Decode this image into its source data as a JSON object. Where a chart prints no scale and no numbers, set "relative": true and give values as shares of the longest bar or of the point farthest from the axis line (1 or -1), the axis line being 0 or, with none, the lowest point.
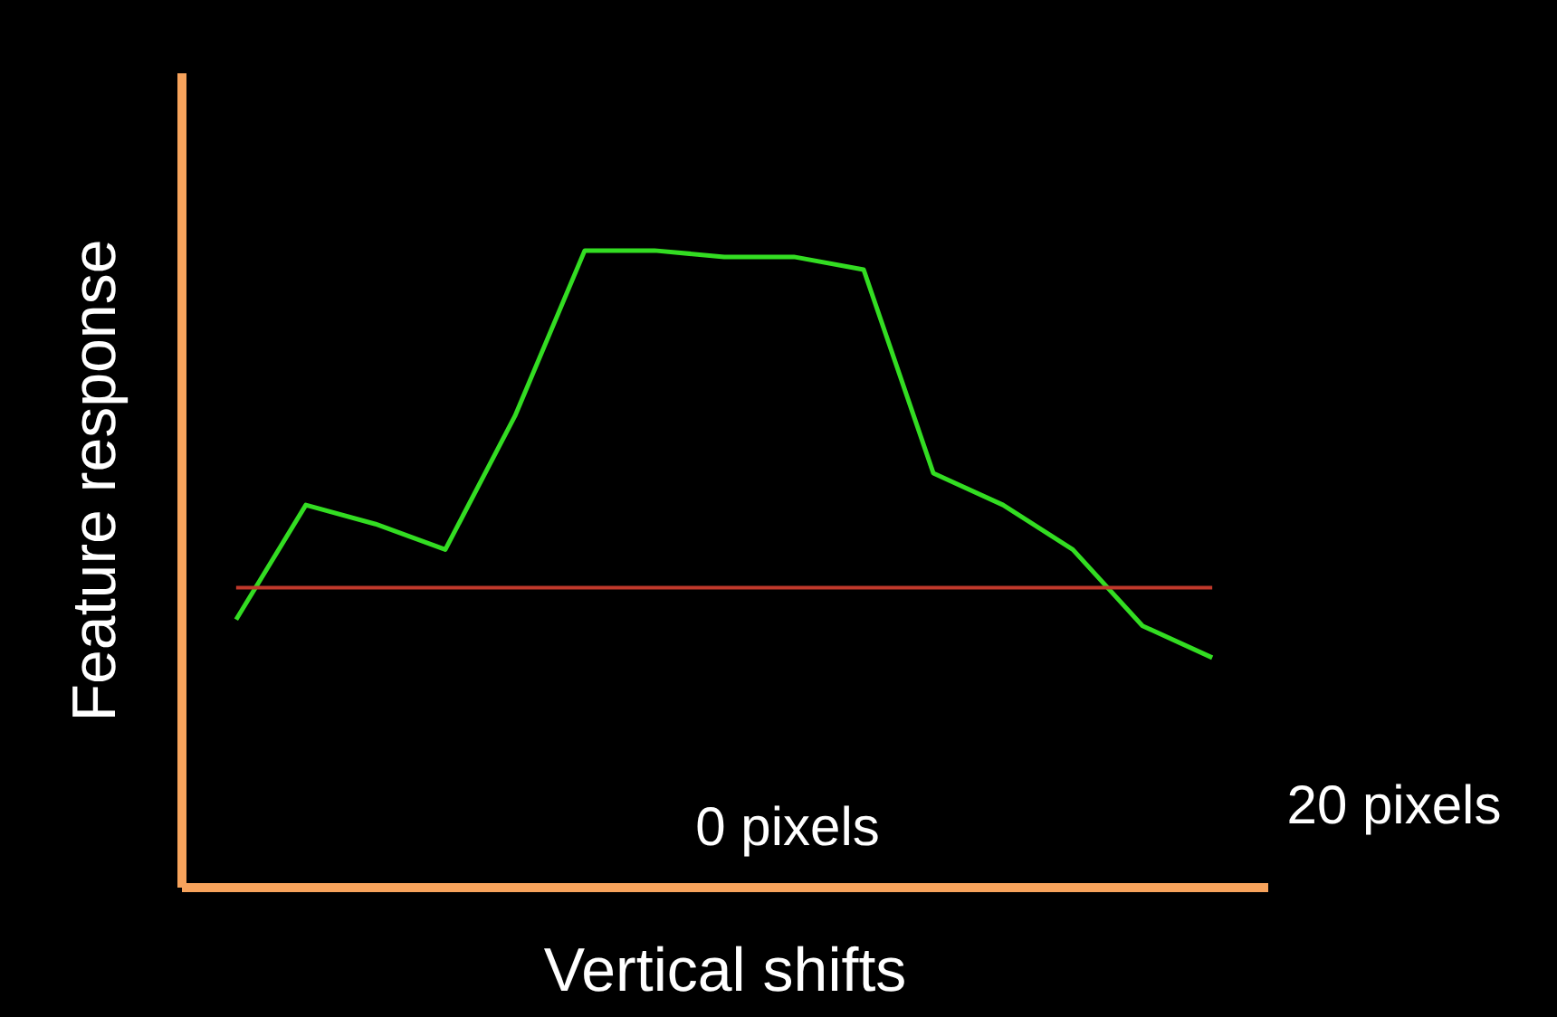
{
  "chart_data": {
    "type": "line",
    "xlabel": "Vertical shifts",
    "ylabel": "Feature response",
    "relative": true,
    "line_style": "solid",
    "categories": [
      null,
      null,
      null,
      null,
      null,
      null,
      null,
      null,
      null,
      null,
      null,
      null,
      null,
      null,
      null
    ],
    "series": [
      {
        "color": "#33dd22",
        "values": [
          0.42,
          0.6,
          0.57,
          0.53,
          0.74,
          1.0,
          1.0,
          0.99,
          0.99,
          0.97,
          0.65,
          0.6,
          0.53,
          0.41,
          0.36
        ]
      }
    ],
    "ref_lines": [
      {
        "axis": "y",
        "value": 0.47,
        "color": "#c0392b"
      }
    ],
    "annotations": [
      "0 pixels",
      "20 pixels"
    ]
  }
}
